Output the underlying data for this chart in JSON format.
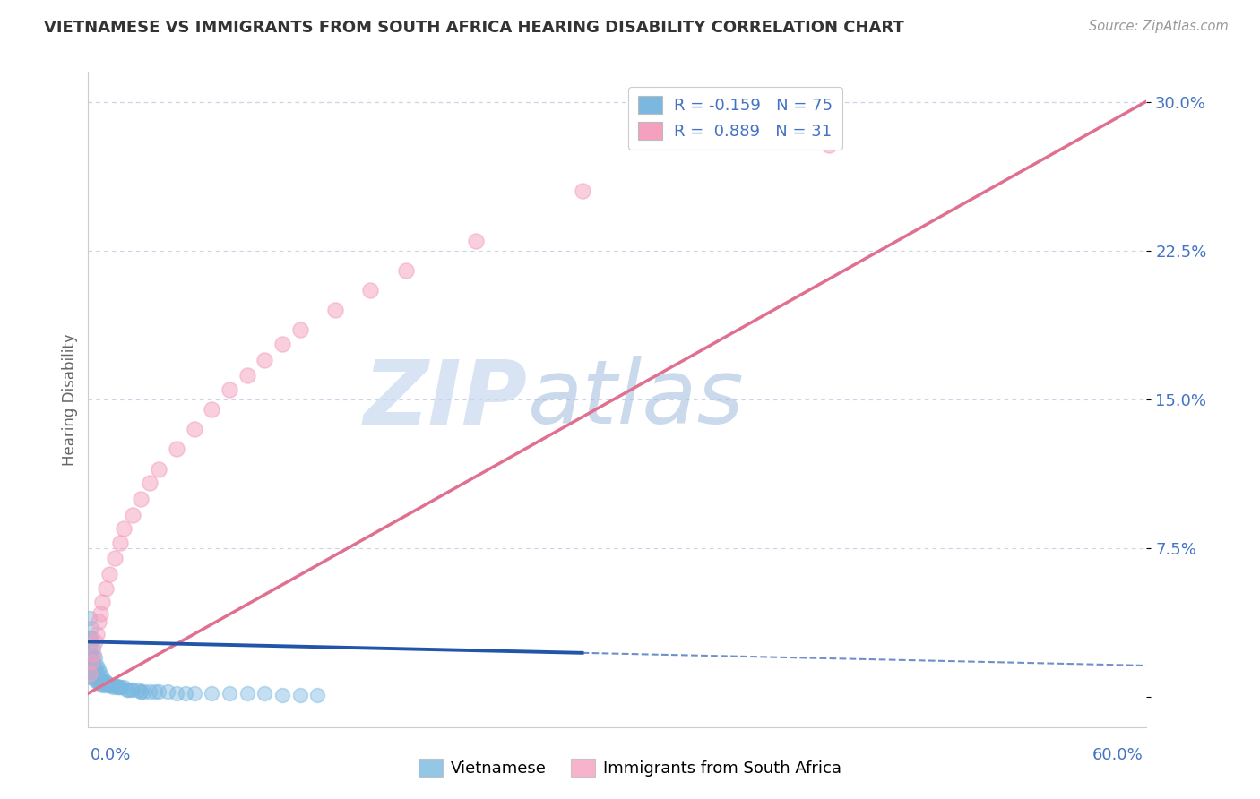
{
  "title": "VIETNAMESE VS IMMIGRANTS FROM SOUTH AFRICA HEARING DISABILITY CORRELATION CHART",
  "source": "Source: ZipAtlas.com",
  "ylabel": "Hearing Disability",
  "yticks": [
    0.0,
    0.075,
    0.15,
    0.225,
    0.3
  ],
  "ytick_labels": [
    "",
    "7.5%",
    "15.0%",
    "22.5%",
    "30.0%"
  ],
  "xlim": [
    0.0,
    0.6
  ],
  "ylim": [
    -0.015,
    0.315
  ],
  "legend_entries": [
    {
      "label": "R = -0.159   N = 75",
      "color": "#aac4e0"
    },
    {
      "label": "R =  0.889   N = 31",
      "color": "#f4b8c8"
    }
  ],
  "legend_title_color": "#4472c4",
  "watermark_text": "ZIP",
  "watermark_text2": "atlas",
  "watermark_color": "#c8d8f0",
  "series1_name": "Vietnamese",
  "series2_name": "Immigrants from South Africa",
  "series1_color": "#7ab8e0",
  "series2_color": "#f4a0be",
  "series1_line_color": "#2255aa",
  "series2_line_color": "#e07090",
  "background_color": "#ffffff",
  "title_color": "#333333",
  "axis_label_color": "#4472c4",
  "grid_color": "#c8d4e8",
  "R1": -0.159,
  "N1": 75,
  "R2": 0.889,
  "N2": 31,
  "viet_x": [
    0.001,
    0.001,
    0.001,
    0.001,
    0.001,
    0.001,
    0.001,
    0.002,
    0.002,
    0.002,
    0.002,
    0.002,
    0.003,
    0.003,
    0.003,
    0.003,
    0.004,
    0.004,
    0.004,
    0.005,
    0.005,
    0.005,
    0.006,
    0.006,
    0.007,
    0.007,
    0.008,
    0.008,
    0.009,
    0.01,
    0.01,
    0.011,
    0.012,
    0.013,
    0.014,
    0.015,
    0.016,
    0.017,
    0.018,
    0.02,
    0.022,
    0.024,
    0.025,
    0.028,
    0.03,
    0.032,
    0.035,
    0.038,
    0.04,
    0.045,
    0.05,
    0.055,
    0.06,
    0.07,
    0.08,
    0.09,
    0.1,
    0.11,
    0.12,
    0.13,
    0.001,
    0.002,
    0.003,
    0.004,
    0.005,
    0.006,
    0.007,
    0.008,
    0.009,
    0.01,
    0.012,
    0.015,
    0.018,
    0.022,
    0.03
  ],
  "viet_y": [
    0.03,
    0.025,
    0.022,
    0.018,
    0.015,
    0.013,
    0.01,
    0.035,
    0.028,
    0.022,
    0.018,
    0.015,
    0.02,
    0.016,
    0.013,
    0.01,
    0.015,
    0.012,
    0.009,
    0.013,
    0.01,
    0.008,
    0.01,
    0.008,
    0.009,
    0.007,
    0.008,
    0.006,
    0.007,
    0.008,
    0.006,
    0.007,
    0.006,
    0.006,
    0.005,
    0.006,
    0.005,
    0.005,
    0.005,
    0.005,
    0.004,
    0.004,
    0.004,
    0.004,
    0.003,
    0.003,
    0.003,
    0.003,
    0.003,
    0.003,
    0.002,
    0.002,
    0.002,
    0.002,
    0.002,
    0.002,
    0.002,
    0.001,
    0.001,
    0.001,
    0.04,
    0.03,
    0.025,
    0.02,
    0.016,
    0.014,
    0.012,
    0.01,
    0.008,
    0.007,
    0.006,
    0.006,
    0.005,
    0.004,
    0.003
  ],
  "sa_x": [
    0.001,
    0.002,
    0.003,
    0.004,
    0.005,
    0.006,
    0.007,
    0.008,
    0.01,
    0.012,
    0.015,
    0.018,
    0.02,
    0.025,
    0.03,
    0.035,
    0.04,
    0.05,
    0.06,
    0.07,
    0.08,
    0.09,
    0.1,
    0.11,
    0.12,
    0.14,
    0.16,
    0.18,
    0.22,
    0.28,
    0.42
  ],
  "sa_y": [
    0.012,
    0.018,
    0.022,
    0.028,
    0.032,
    0.038,
    0.042,
    0.048,
    0.055,
    0.062,
    0.07,
    0.078,
    0.085,
    0.092,
    0.1,
    0.108,
    0.115,
    0.125,
    0.135,
    0.145,
    0.155,
    0.162,
    0.17,
    0.178,
    0.185,
    0.195,
    0.205,
    0.215,
    0.23,
    0.255,
    0.278
  ]
}
